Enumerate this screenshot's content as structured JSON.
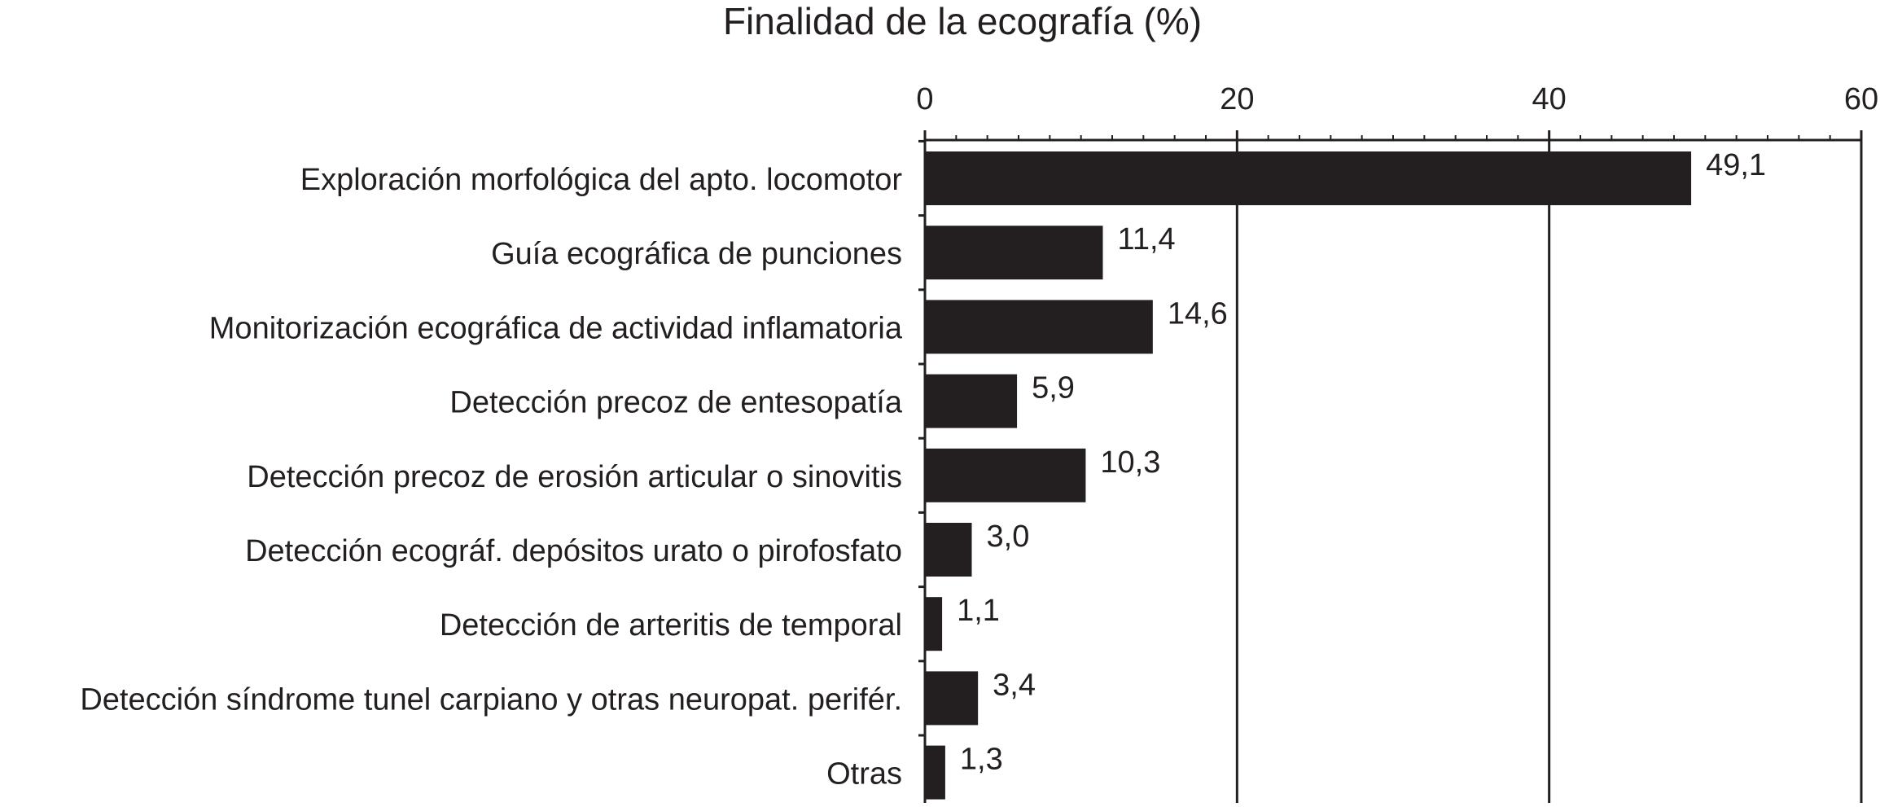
{
  "chart_data": {
    "type": "bar",
    "orientation": "horizontal",
    "title": "Finalidad de la ecografía (%)",
    "xlabel": "",
    "ylabel": "",
    "xlim": [
      0,
      60
    ],
    "ticks": [
      0,
      20,
      40,
      60
    ],
    "tick_labels": [
      "0",
      "20",
      "40",
      "60"
    ],
    "axis_position": "top",
    "grid": true,
    "legend": "none",
    "categories": [
      "Exploración morfológica del apto. locomotor",
      "Guía ecográfica de punciones",
      "Monitorización ecográfica de actividad inflamatoria",
      "Detección precoz de entesopatía",
      "Detección precoz de erosión articular o sinovitis",
      "Detección ecográf. depósitos urato o pirofosfato",
      "Detección de arteritis de temporal",
      "Detección síndrome tunel carpiano y otras neuropat. perifér.",
      "Otras"
    ],
    "values": [
      49.1,
      11.4,
      14.6,
      5.9,
      10.3,
      3.0,
      1.1,
      3.4,
      1.3
    ],
    "value_labels": [
      "49,1",
      "11,4",
      "14,6",
      "5,9",
      "10,3",
      "3,0",
      "1,1",
      "3,4",
      "1,3"
    ],
    "bar_color": "#231f20",
    "axis_color": "#231f20"
  }
}
